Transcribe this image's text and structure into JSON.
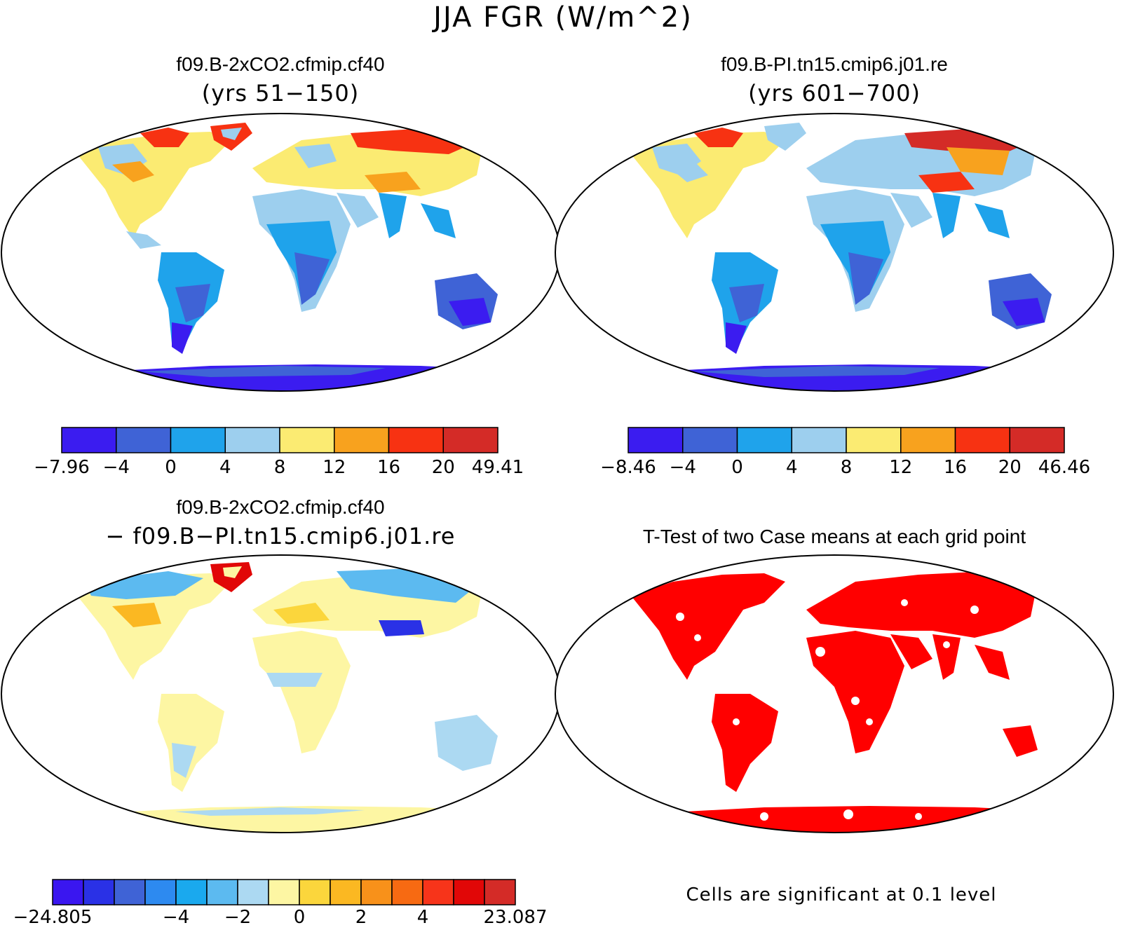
{
  "title": "JJA FGR (W/m^2)",
  "panels": [
    {
      "name": "panel-case1",
      "title": "f09.B-2xCO2.cfmip.cf40",
      "subtitle": "(yrs 51−150)"
    },
    {
      "name": "panel-case2",
      "title": "f09.B-PI.tn15.cmip6.j01.re",
      "subtitle": "(yrs 601−700)"
    },
    {
      "name": "panel-diff",
      "title": "f09.B-2xCO2.cfmip.cf40",
      "subtitle": "− f09.B−PI.tn15.cmip6.j01.re"
    },
    {
      "name": "panel-ttest",
      "title": "T-Test of two Case means at each grid point",
      "subtitle": ""
    }
  ],
  "colorbars": {
    "case1": {
      "ticks": [
        "−7.96",
        "−4",
        "0",
        "4",
        "8",
        "12",
        "16",
        "20",
        "49.41"
      ],
      "colors": [
        "#3b1cf0",
        "#3f63d6",
        "#1fa3eb",
        "#9dcfee",
        "#fbeb72",
        "#f8a21e",
        "#f73212",
        "#d42b27"
      ]
    },
    "case2": {
      "ticks": [
        "−8.46",
        "−4",
        "0",
        "4",
        "8",
        "12",
        "16",
        "20",
        "46.46"
      ],
      "colors": [
        "#3b1cf0",
        "#3f63d6",
        "#1fa3eb",
        "#9dcfee",
        "#fbeb72",
        "#f8a21e",
        "#f73212",
        "#d42b27"
      ]
    },
    "diff": {
      "ticks": [
        "−24.805",
        "−4",
        "−2",
        "0",
        "2",
        "4",
        "23.087"
      ],
      "colors": [
        "#3a16f0",
        "#2a31e6",
        "#3f63d6",
        "#2d8af0",
        "#1aa9ee",
        "#5cbaf0",
        "#acd9f2",
        "#fdf6a3",
        "#fbd63c",
        "#fbb822",
        "#f8911a",
        "#f76a12",
        "#f7341a",
        "#e10707",
        "#d42b27"
      ]
    }
  },
  "ttest_note": "Cells are significant at 0.1 level",
  "colors": {
    "significant": "#ff0000",
    "outline": "#000000"
  }
}
